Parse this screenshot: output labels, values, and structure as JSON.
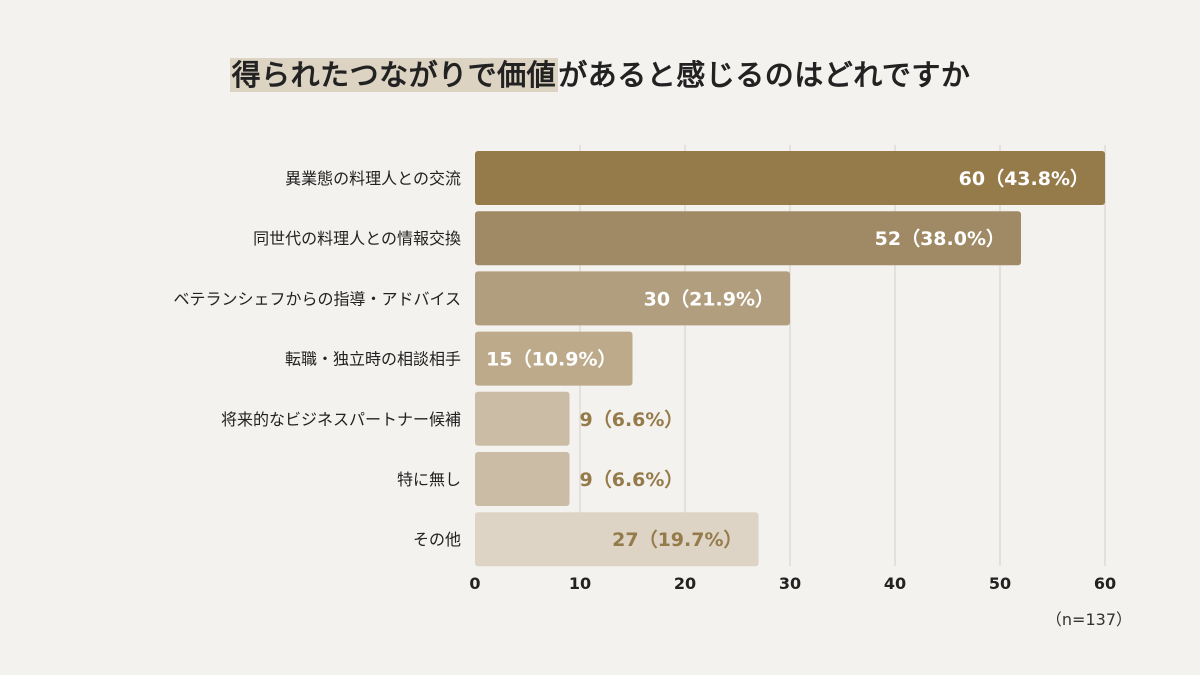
{
  "title": {
    "highlight": "得られたつながりで価値",
    "rest": "があると感じるのはどれですか"
  },
  "chart_data": {
    "type": "bar",
    "orientation": "horizontal",
    "categories": [
      "異業態の料理人との交流",
      "同世代の料理人との情報交換",
      "ベテランシェフからの指導・アドバイス",
      "転職・独立時の相談相手",
      "将来的なビジネスパートナー候補",
      "特に無し",
      "その他"
    ],
    "values": [
      60,
      52,
      30,
      15,
      9,
      9,
      27
    ],
    "labels": [
      "60（43.8%）",
      "52（38.0%）",
      "30（21.9%）",
      "15（10.9%）",
      "9（6.6%）",
      "9（6.6%）",
      "27（19.7%）"
    ],
    "bar_colors": [
      "#957a4a",
      "#9f8a65",
      "#b09e7f",
      "#bcaa8b",
      "#cbbca5",
      "#cbbca5",
      "#ddd4c6"
    ],
    "label_colors": [
      "#ffffff",
      "#ffffff",
      "#ffffff",
      "#ffffff",
      "#957a4a",
      "#957a4a",
      "#957a4a"
    ],
    "label_inside": [
      true,
      true,
      true,
      true,
      false,
      false,
      true
    ],
    "x_ticks": [
      0,
      10,
      20,
      30,
      40,
      50,
      60
    ],
    "xlim": [
      0,
      60
    ],
    "grid": true,
    "note": "（n=137）"
  }
}
